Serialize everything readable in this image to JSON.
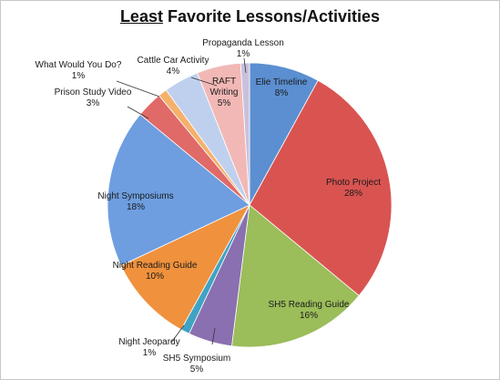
{
  "chart_data": {
    "type": "pie",
    "title_emphasis": "Least",
    "title_rest": " Favorite Lessons/Activities",
    "start_angle_deg": 0,
    "direction": "clockwise",
    "slices": [
      {
        "label": "Elie Timeline",
        "value_text": "8%",
        "value": 8,
        "color": "#5b8fd1"
      },
      {
        "label": "Photo Project",
        "value_text": "28%",
        "value": 28,
        "color": "#d95451"
      },
      {
        "label": "SH5 Reading Guide",
        "value_text": "16%",
        "value": 16,
        "color": "#9bbd5a"
      },
      {
        "label": "SH5 Symposium",
        "value_text": "5%",
        "value": 5,
        "color": "#8a70b0"
      },
      {
        "label": "Night Jeopardy",
        "value_text": "1%",
        "value": 1,
        "color": "#3fa3c4"
      },
      {
        "label": "Night Reading Guide",
        "value_text": "10%",
        "value": 10,
        "color": "#f0913d"
      },
      {
        "label": "Night Symposiums",
        "value_text": "18%",
        "value": 18,
        "color": "#6e9ee0"
      },
      {
        "label": "Prison Study Video",
        "value_text": "3%",
        "value": 3,
        "color": "#e06a67"
      },
      {
        "label": "What Would You Do?",
        "value_text": "1%",
        "value": 1,
        "color": "#f5b16b"
      },
      {
        "label": "Cattle Car Activity",
        "value_text": "4%",
        "value": 4,
        "color": "#bfd0ef"
      },
      {
        "label": "RAFT Writing",
        "value_text": "5%",
        "value": 5,
        "color": "#f2b8b6"
      },
      {
        "label": "Propaganda Lesson",
        "value_text": "1%",
        "value": 1,
        "color": "#c9c1dc"
      }
    ]
  }
}
